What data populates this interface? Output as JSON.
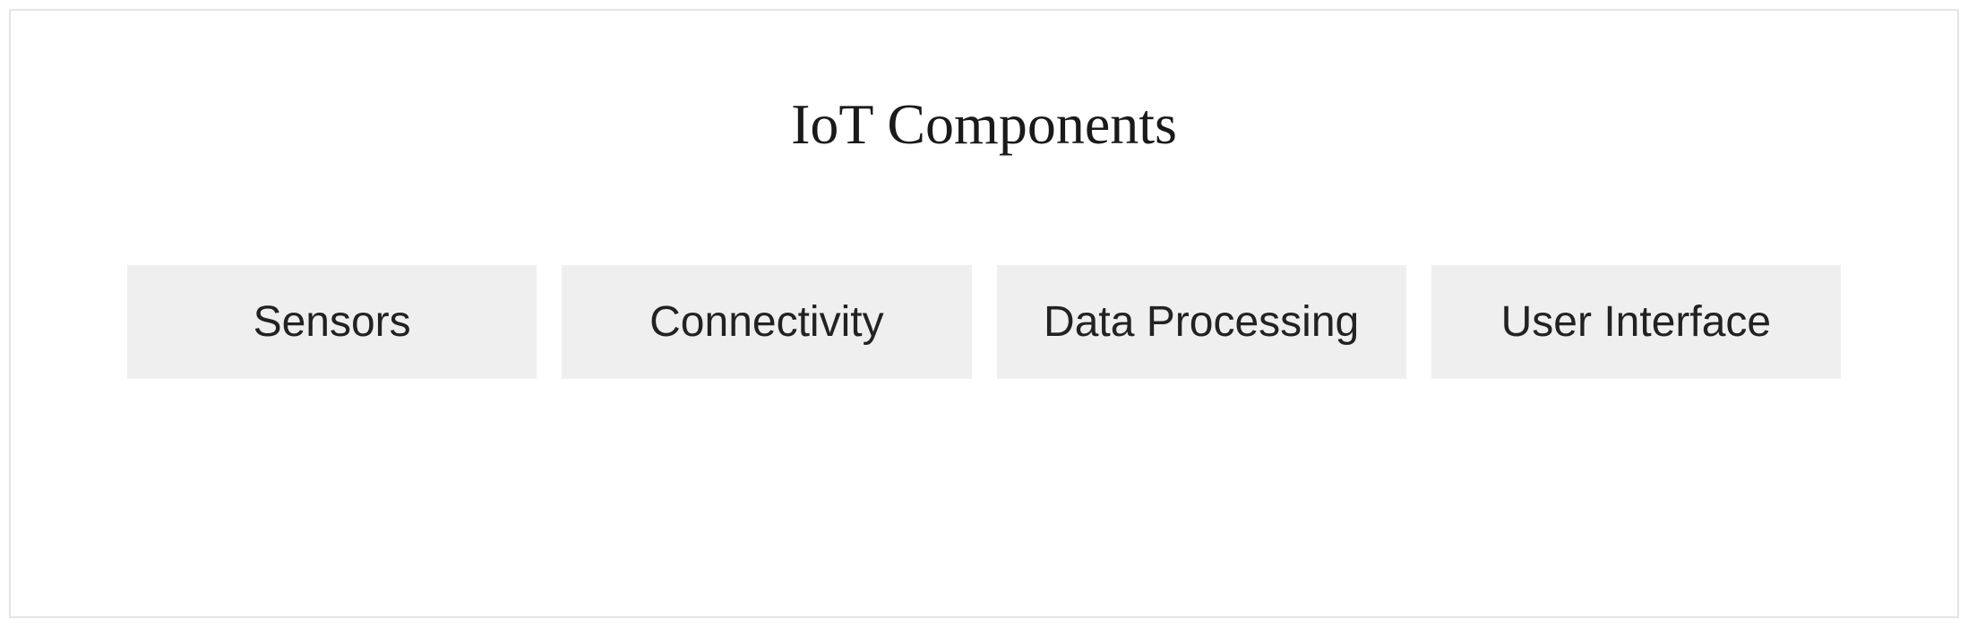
{
  "diagram": {
    "type": "infographic",
    "title": "IoT Components",
    "title_font_family": "Georgia, serif",
    "title_fontsize": 64,
    "title_color": "#1a1a1a",
    "background_color": "#ffffff",
    "border_color": "#e5e5e5",
    "boxes": {
      "background_color": "#efefef",
      "text_color": "#222222",
      "label_fontsize": 48,
      "label_font_family": "Segoe UI, Helvetica Neue, Arial, sans-serif",
      "gap": 28,
      "padding_vertical": 36,
      "items": [
        {
          "label": "Sensors"
        },
        {
          "label": "Connectivity"
        },
        {
          "label": "Data Processing"
        },
        {
          "label": "User Interface"
        }
      ]
    }
  }
}
